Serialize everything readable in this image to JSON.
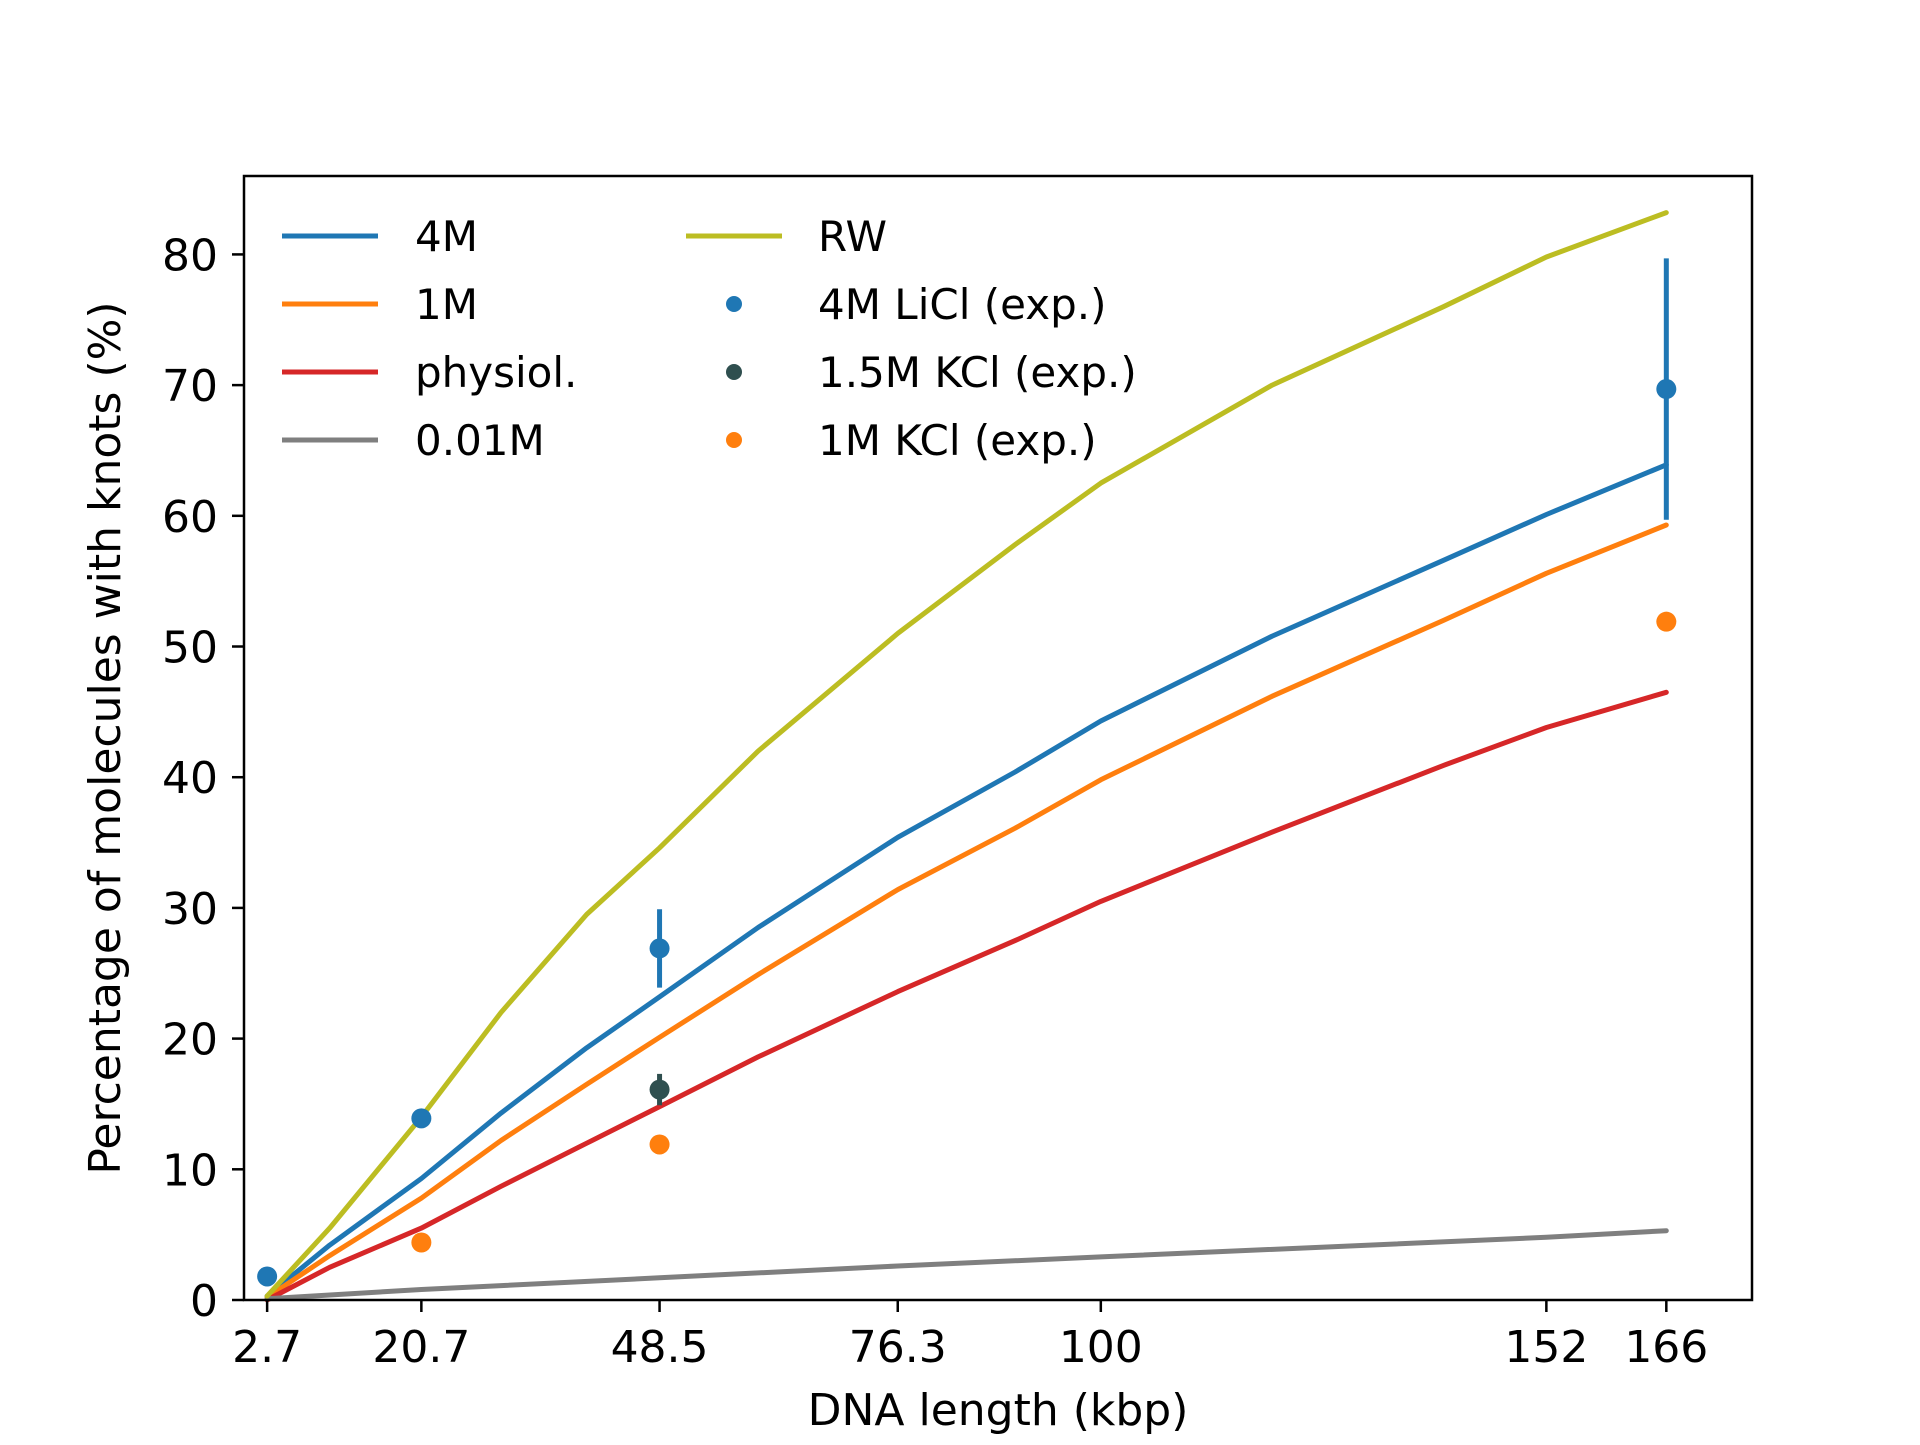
{
  "chart_data": {
    "type": "line",
    "title": "",
    "xlabel": "DNA length (kbp)",
    "ylabel": "Percentage of molecules with knots (%)",
    "xlim": [
      0,
      176
    ],
    "ylim": [
      0,
      86
    ],
    "x_ticks": [
      2.7,
      20.7,
      48.5,
      76.3,
      100,
      152,
      166
    ],
    "x_tick_labels": [
      "2.7",
      "20.7",
      "48.5",
      "76.3",
      "100",
      "152",
      "166"
    ],
    "y_ticks": [
      0,
      10,
      20,
      30,
      40,
      50,
      60,
      70,
      80
    ],
    "y_tick_labels": [
      "0",
      "10",
      "20",
      "30",
      "40",
      "50",
      "60",
      "70",
      "80"
    ],
    "grid": false,
    "legend_position": "top-left",
    "series": [
      {
        "name": "4M",
        "kind": "line",
        "color": "#1f77b4",
        "x": [
          2.7,
          10,
          20.7,
          30,
          40,
          48.5,
          60,
          76.3,
          90,
          100,
          120,
          140,
          152,
          166
        ],
        "y": [
          0.3,
          4.2,
          9.3,
          14.3,
          19.3,
          23.2,
          28.5,
          35.4,
          40.4,
          44.3,
          50.8,
          56.6,
          60.1,
          63.9
        ]
      },
      {
        "name": "1M",
        "kind": "line",
        "color": "#ff7f0e",
        "x": [
          2.7,
          10,
          20.7,
          30,
          40,
          48.5,
          60,
          76.3,
          90,
          100,
          120,
          140,
          152,
          166
        ],
        "y": [
          0.2,
          3.4,
          7.8,
          12.2,
          16.5,
          20.1,
          24.9,
          31.4,
          36.1,
          39.8,
          46.2,
          52.0,
          55.6,
          59.3
        ]
      },
      {
        "name": "physiol.",
        "kind": "line",
        "color": "#d62728",
        "x": [
          2.7,
          10,
          20.7,
          30,
          40,
          48.5,
          60,
          76.3,
          90,
          100,
          120,
          140,
          152,
          166
        ],
        "y": [
          0.0,
          2.5,
          5.5,
          8.7,
          12.0,
          14.8,
          18.6,
          23.6,
          27.5,
          30.5,
          35.8,
          40.9,
          43.8,
          46.5
        ]
      },
      {
        "name": "0.01M",
        "kind": "line",
        "color": "#7f7f7f",
        "x": [
          2.7,
          20.7,
          48.5,
          76.3,
          100,
          152,
          166
        ],
        "y": [
          0.1,
          0.8,
          1.7,
          2.6,
          3.3,
          4.8,
          5.3
        ]
      },
      {
        "name": "RW",
        "kind": "line",
        "color": "#bcbd22",
        "x": [
          2.7,
          10,
          20.7,
          30,
          40,
          48.5,
          60,
          76.3,
          90,
          100,
          120,
          140,
          152,
          166
        ],
        "y": [
          0.3,
          5.5,
          14.0,
          22.0,
          29.5,
          34.6,
          42.0,
          51.0,
          57.8,
          62.5,
          70.0,
          76.0,
          79.8,
          83.2
        ]
      },
      {
        "name": "4M LiCl (exp.)",
        "kind": "scatter",
        "color": "#1f77b4",
        "x": [
          2.7,
          20.7,
          48.5,
          166
        ],
        "y": [
          1.8,
          13.9,
          26.9,
          69.7
        ],
        "yerr": [
          0,
          0,
          3.0,
          10.0
        ]
      },
      {
        "name": "1.5M KCl (exp.)",
        "kind": "scatter",
        "color": "#2f4f4f",
        "x": [
          48.5
        ],
        "y": [
          16.1
        ],
        "yerr": [
          1.2
        ]
      },
      {
        "name": "1M KCl (exp.)",
        "kind": "scatter",
        "color": "#ff7f0e",
        "x": [
          20.7,
          48.5,
          166
        ],
        "y": [
          4.4,
          11.9,
          51.9
        ],
        "yerr": [
          0,
          0.6,
          0
        ]
      }
    ]
  }
}
